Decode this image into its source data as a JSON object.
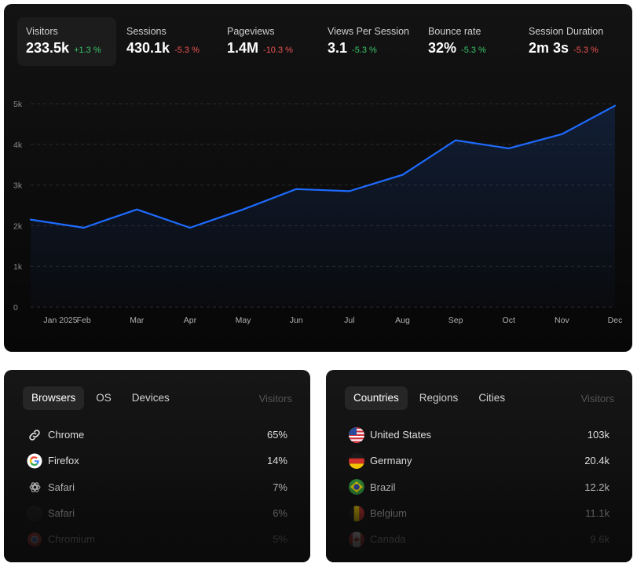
{
  "metrics": [
    {
      "label": "Visitors",
      "value": "233.5k",
      "change": "+1.3 %",
      "trend": "up",
      "active": true
    },
    {
      "label": "Sessions",
      "value": "430.1k",
      "change": "-5.3 %",
      "trend": "down"
    },
    {
      "label": "Pageviews",
      "value": "1.4M",
      "change": "-10.3 %",
      "trend": "down"
    },
    {
      "label": "Views Per Session",
      "value": "3.1",
      "change": "-5.3 %",
      "trend": "up"
    },
    {
      "label": "Bounce rate",
      "value": "32%",
      "change": "-5.3 %",
      "trend": "up"
    },
    {
      "label": "Session Duration",
      "value": "2m 3s",
      "change": "-5.3 %",
      "trend": "down"
    }
  ],
  "colors": {
    "line": "#1e6bff",
    "positive": "#3ac569",
    "negative": "#f05454",
    "panel": "#0b0b0b"
  },
  "chart_data": {
    "type": "area",
    "x": [
      "Jan 2025",
      "Feb",
      "Mar",
      "Apr",
      "May",
      "Jun",
      "Jul",
      "Aug",
      "Sep",
      "Oct",
      "Nov",
      "Dec"
    ],
    "series": [
      {
        "values": [
          2150,
          1950,
          2400,
          1950,
          2400,
          2900,
          2850,
          3250,
          4100,
          3900,
          4250,
          4950
        ]
      }
    ],
    "ytick_labels": [
      "0",
      "1k",
      "2k",
      "3k",
      "4k",
      "5k"
    ],
    "ylim": [
      0,
      5000
    ],
    "grid": "horizontal-dashed"
  },
  "browsers_card": {
    "tabs": [
      "Browsers",
      "OS",
      "Devices"
    ],
    "active_tab": 0,
    "column_header": "Visitors",
    "rows": [
      {
        "name": "Chrome",
        "value": "65%",
        "icon": "link-icon"
      },
      {
        "name": "Firefox",
        "value": "14%",
        "icon": "google-icon"
      },
      {
        "name": "Safari",
        "value": "7%",
        "icon": "openai-icon"
      },
      {
        "name": "Safari",
        "value": "6%",
        "icon": "circle-icon"
      },
      {
        "name": "Chromium",
        "value": "5%",
        "icon": "chromium-icon"
      }
    ]
  },
  "countries_card": {
    "tabs": [
      "Countries",
      "Regions",
      "Cities"
    ],
    "active_tab": 0,
    "column_header": "Visitors",
    "rows": [
      {
        "name": "United States",
        "value": "103k",
        "icon": "us-flag-icon"
      },
      {
        "name": "Germany",
        "value": "20.4k",
        "icon": "germany-flag-icon"
      },
      {
        "name": "Brazil",
        "value": "12.2k",
        "icon": "brazil-flag-icon"
      },
      {
        "name": "Belgium",
        "value": "11.1k",
        "icon": "belgium-flag-icon"
      },
      {
        "name": "Canada",
        "value": "9.6k",
        "icon": "canada-flag-icon"
      }
    ]
  }
}
